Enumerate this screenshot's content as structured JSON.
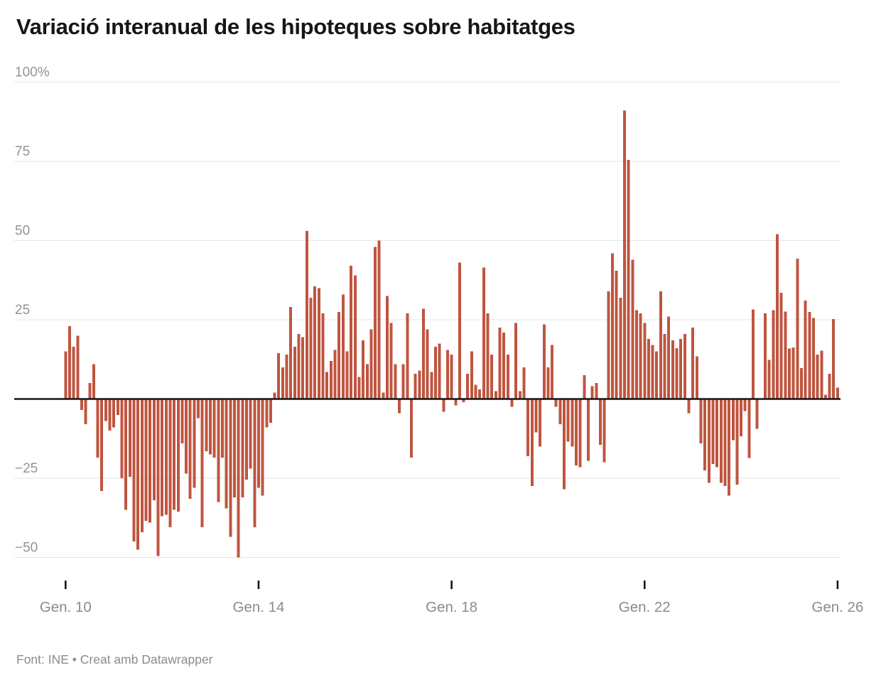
{
  "header": {
    "title": "Variació interanual de les hipoteques sobre habitatges"
  },
  "footer": {
    "text": "Font: INE • Creat amb Datawrapper"
  },
  "chart_data": {
    "type": "bar",
    "title": "Variació interanual de les hipoteques sobre habitatges",
    "unit": "%",
    "x_start": "2010-01",
    "x_end": "2026-01",
    "x_interval": "month",
    "x_tick_labels": [
      "Gen. 10",
      "Gen. 14",
      "Gen. 18",
      "Gen. 22",
      "Gen. 26"
    ],
    "x_tick_month_indices": [
      0,
      48,
      96,
      144,
      192
    ],
    "y_tick_labels": [
      "100%",
      "75",
      "50",
      "25",
      "−25",
      "−50"
    ],
    "y_tick_values": [
      100,
      75,
      50,
      25,
      -25,
      -50
    ],
    "ylim": [
      -54,
      101
    ],
    "grid": "horizontal",
    "legend": "none",
    "bar_color": "#bf5540",
    "grid_color": "#e6e6e6",
    "zero_line_color": "#161616",
    "axis_label_color": "#949494",
    "values": [
      15,
      23,
      16.5,
      20,
      -3.5,
      -8,
      5,
      11,
      -18.5,
      -29,
      -7,
      -10,
      -9,
      -5,
      -25,
      -35,
      -24.5,
      -45,
      -47.5,
      -42,
      -38.5,
      -39,
      -32,
      -49.5,
      -37,
      -36.5,
      -40.5,
      -35,
      -35.5,
      -14,
      -23.5,
      -31.5,
      -28,
      -6,
      -40.5,
      -16.5,
      -17.5,
      -18.5,
      -32.5,
      -18.5,
      -34.5,
      -43.5,
      -31,
      -50,
      -31,
      -25.5,
      -22,
      -40.5,
      -28,
      -30.5,
      -9,
      -7.5,
      2,
      14.5,
      10,
      14,
      29,
      16.5,
      20.5,
      19.5,
      53,
      32,
      35.5,
      35,
      27,
      8.5,
      12,
      15.5,
      27.5,
      33,
      15,
      42,
      39,
      7,
      18.5,
      11,
      22,
      48,
      50,
      2,
      32.5,
      24,
      11,
      -4.5,
      11,
      27,
      -18.5,
      8,
      9,
      28.5,
      22,
      8.5,
      16.5,
      17.5,
      -4,
      15.5,
      14,
      -2,
      43,
      -1,
      8,
      15,
      4.5,
      3,
      41.5,
      27,
      14,
      2.5,
      22.5,
      21,
      14,
      -2.5,
      24,
      2.5,
      10,
      -18,
      -27.5,
      -10.5,
      -15,
      23.5,
      10,
      17,
      -2.5,
      -8,
      -28.5,
      -13.5,
      -15,
      -21,
      -21.5,
      7.5,
      -19.5,
      4,
      5,
      -14.5,
      -20,
      34,
      46,
      40.5,
      32,
      91,
      75.5,
      44,
      28,
      27,
      24,
      19,
      17,
      15,
      34,
      20.5,
      26,
      18.5,
      16,
      19,
      20.5,
      -4.5,
      22.5,
      13.5,
      -14,
      -22.5,
      -26.5,
      -20.5,
      -21.5,
      -26.5,
      -27.5,
      -30.5,
      -13,
      -27,
      -11.8,
      -3.8,
      -18.6,
      28.2,
      -9.4,
      0,
      27,
      12.3,
      28,
      52,
      33.5,
      27.6,
      15.9,
      16.2,
      44.3,
      9.7,
      31.1,
      27.5,
      25.6,
      14,
      15.3,
      1.3,
      8,
      25.2,
      3.6
    ]
  }
}
